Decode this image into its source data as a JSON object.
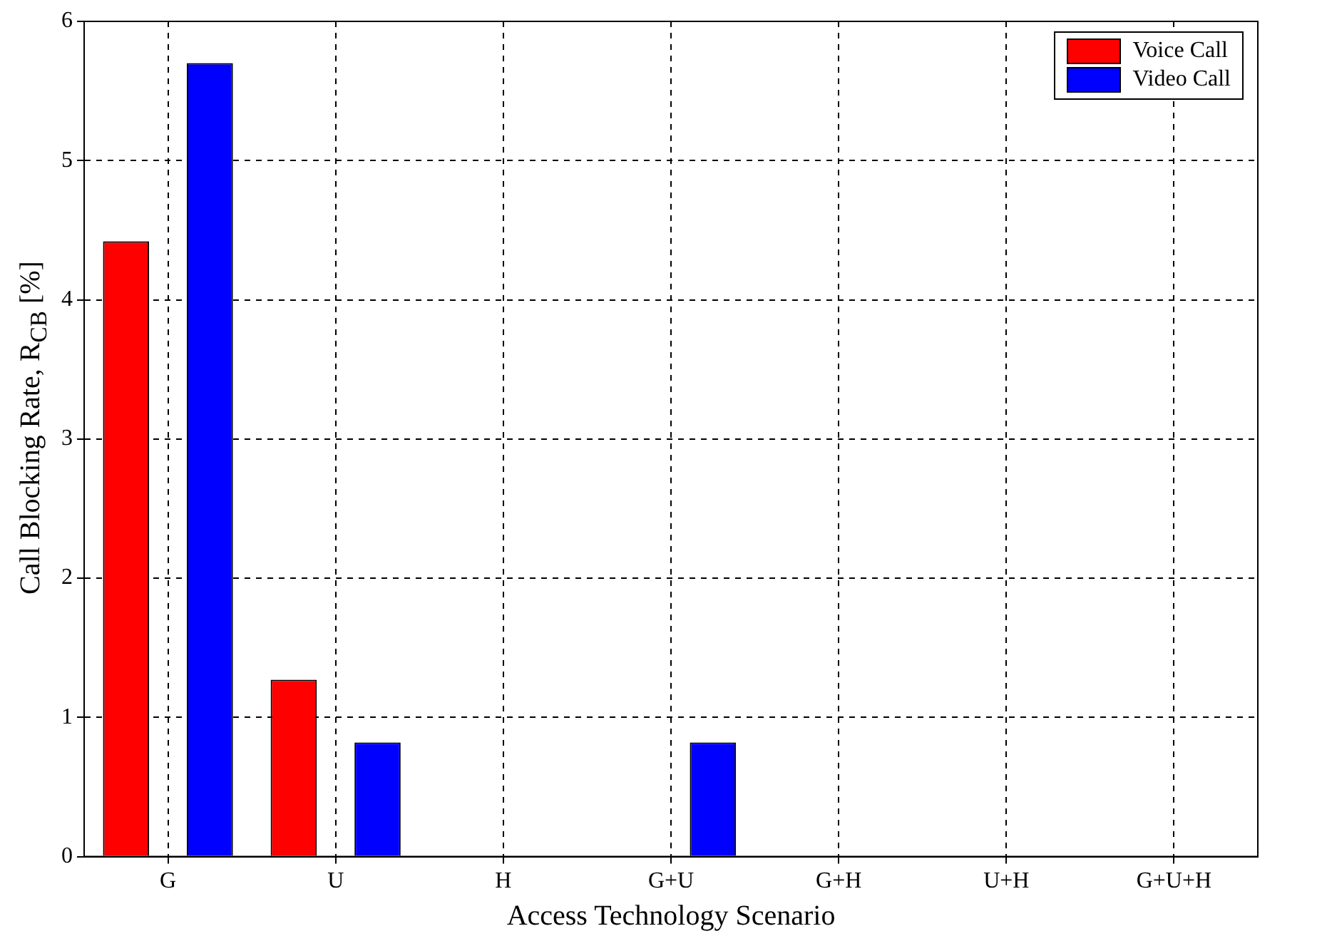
{
  "chart_data": {
    "type": "bar",
    "xlabel": "Access Technology Scenario",
    "ylabel": "Call Blocking Rate, R$_{CB}$ [%]",
    "categories": [
      "G",
      "U",
      "H",
      "G+U",
      "G+H",
      "U+H",
      "G+U+H"
    ],
    "series": [
      {
        "name": "Voice Call",
        "color": "#ff0000",
        "values": [
          4.42,
          1.27,
          0,
          0,
          0,
          0,
          0
        ]
      },
      {
        "name": "Video Call",
        "color": "#0000ff",
        "values": [
          5.7,
          0.82,
          0,
          0.82,
          0,
          0,
          0
        ]
      }
    ],
    "ylim": [
      0,
      6
    ],
    "yticks": [
      0,
      1,
      2,
      3,
      4,
      5,
      6
    ],
    "grid": true,
    "legend": "top right"
  }
}
